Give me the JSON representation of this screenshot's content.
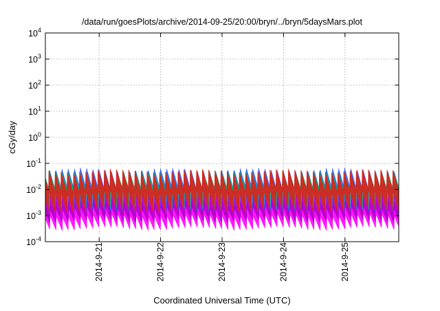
{
  "chart_data": {
    "type": "area",
    "title": "/data/run/goesPlots/archive/2014-09-25/20:00/bryn/../bryn/5daysMars.plot",
    "xlabel": "Coordinated Universal Time (UTC)",
    "ylabel": "cGy/day",
    "yscale": "log",
    "ylim": [
      0.0001,
      10000
    ],
    "y_ticks": [
      {
        "base": "10",
        "exp": "-4"
      },
      {
        "base": "10",
        "exp": "-3"
      },
      {
        "base": "10",
        "exp": "-2"
      },
      {
        "base": "10",
        "exp": "-1"
      },
      {
        "base": "10",
        "exp": "0"
      },
      {
        "base": "10",
        "exp": "1"
      },
      {
        "base": "10",
        "exp": "2"
      },
      {
        "base": "10",
        "exp": "3"
      },
      {
        "base": "10",
        "exp": "4"
      }
    ],
    "xlim": [
      "2014-09-20 03:00",
      "2014-09-25 21:00"
    ],
    "x_tick_labels": [
      "2014-9-21",
      "2014-9-22",
      "2014-9-23",
      "2014-9-24",
      "2014-9-25"
    ],
    "x_tick_dates": [
      "2014-09-21 00:00",
      "2014-09-22 00:00",
      "2014-09-23 00:00",
      "2014-09-24 00:00",
      "2014-09-25 00:00"
    ],
    "grid": true,
    "legend": "none",
    "oscillation_cycles_per_day": 10,
    "series": [
      {
        "color": "#ff00ff",
        "min": 0.0003,
        "max": 0.004
      },
      {
        "color": "#b000c8",
        "min": 0.0006,
        "max": 0.008
      },
      {
        "color": "#3050ff",
        "min": 0.0015,
        "max": 0.06
      },
      {
        "color": "#00a0c8",
        "min": 0.002,
        "max": 0.045
      },
      {
        "color": "#00d0d0",
        "min": 0.003,
        "max": 0.03
      },
      {
        "color": "#00b050",
        "min": 0.002,
        "max": 0.05
      },
      {
        "color": "#e02020",
        "min": 0.0015,
        "max": 0.055
      }
    ]
  }
}
